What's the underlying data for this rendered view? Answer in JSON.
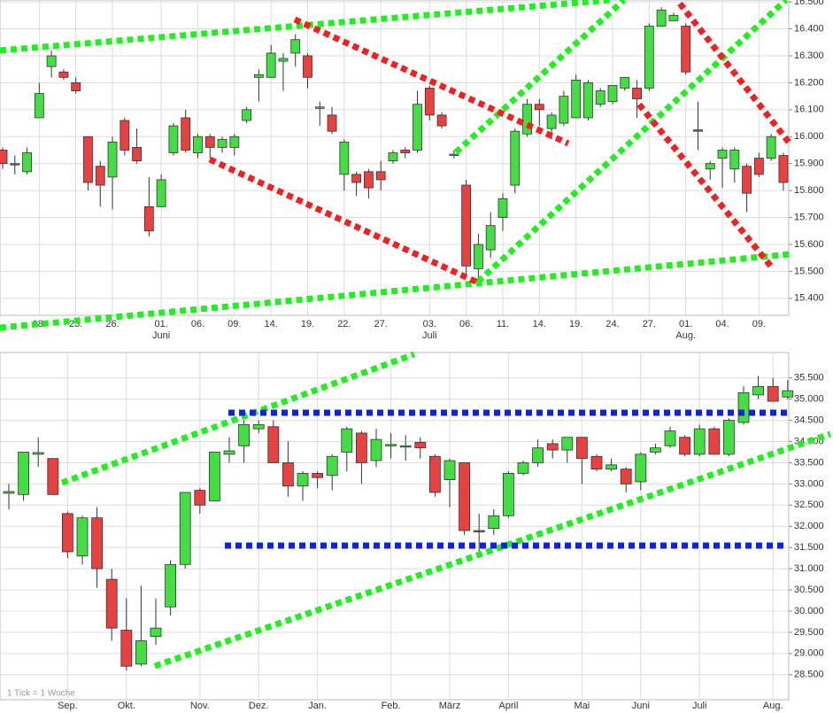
{
  "chart_data": [
    {
      "type": "candlestick",
      "categories": [
        null,
        null,
        null,
        "18.",
        null,
        null,
        "23.",
        null,
        null,
        "26.",
        null,
        null,
        null,
        "01.",
        null,
        null,
        "06.",
        null,
        null,
        "09.",
        null,
        null,
        "14.",
        null,
        null,
        "19.",
        null,
        null,
        "22.",
        null,
        null,
        "27.",
        null,
        null,
        null,
        "03.",
        null,
        null,
        "06.",
        null,
        null,
        "11.",
        null,
        null,
        "14.",
        null,
        null,
        "19.",
        null,
        null,
        "24.",
        null,
        null,
        "27.",
        null,
        null,
        "01.",
        null,
        null,
        "04.",
        null,
        null,
        "09.",
        null,
        null
      ],
      "month_labels": [
        null,
        null,
        null,
        null,
        null,
        null,
        null,
        null,
        null,
        null,
        null,
        null,
        null,
        "Juni",
        null,
        null,
        null,
        null,
        null,
        null,
        null,
        null,
        null,
        null,
        null,
        null,
        null,
        null,
        null,
        null,
        null,
        null,
        null,
        null,
        null,
        "Juli",
        null,
        null,
        null,
        null,
        null,
        null,
        null,
        null,
        null,
        null,
        null,
        null,
        null,
        null,
        null,
        null,
        null,
        null,
        null,
        null,
        "Aug.",
        null,
        null,
        null,
        null,
        null,
        null,
        null,
        null
      ],
      "open": [
        15.95,
        15.9,
        15.87,
        16.07,
        16.26,
        16.24,
        16.2,
        16.0,
        15.89,
        15.85,
        16.06,
        15.96,
        15.74,
        15.74,
        15.94,
        16.07,
        15.94,
        16.0,
        15.96,
        15.96,
        16.06,
        16.22,
        16.22,
        16.28,
        16.31,
        16.3,
        16.105,
        16.08,
        15.86,
        15.86,
        15.87,
        15.87,
        15.91,
        15.95,
        15.95,
        16.18,
        16.08,
        15.93,
        15.82,
        15.51,
        15.58,
        15.7,
        15.82,
        16.01,
        16.12,
        16.03,
        16.05,
        16.07,
        16.07,
        16.12,
        16.13,
        16.18,
        16.18,
        16.18,
        16.41,
        16.43,
        16.41,
        16.025,
        15.88,
        15.92,
        15.88,
        15.89,
        15.92,
        15.92,
        15.93
      ],
      "high": [
        15.96,
        15.93,
        15.96,
        16.2,
        16.32,
        16.25,
        16.22,
        16.0,
        15.91,
        16.0,
        16.07,
        16.03,
        15.85,
        15.86,
        16.05,
        16.1,
        16.01,
        16.01,
        16.0,
        16.01,
        16.11,
        16.25,
        16.34,
        16.31,
        16.38,
        16.31,
        16.13,
        16.11,
        15.99,
        15.87,
        15.88,
        15.91,
        15.95,
        15.96,
        16.17,
        16.19,
        16.09,
        15.95,
        15.84,
        15.64,
        15.72,
        15.79,
        16.03,
        16.14,
        16.14,
        16.09,
        16.17,
        16.23,
        16.21,
        16.18,
        16.19,
        16.22,
        16.21,
        16.42,
        16.48,
        16.46,
        16.42,
        16.13,
        15.91,
        15.96,
        15.96,
        15.9,
        15.94,
        16.01,
        15.94
      ],
      "low": [
        15.88,
        15.86,
        15.86,
        16.07,
        16.22,
        16.21,
        16.16,
        15.8,
        15.74,
        15.73,
        15.93,
        15.9,
        15.63,
        15.74,
        15.93,
        15.94,
        15.92,
        15.92,
        15.94,
        15.93,
        16.05,
        16.13,
        16.22,
        16.17,
        16.26,
        16.18,
        16.04,
        16.01,
        15.8,
        15.78,
        15.77,
        15.8,
        15.9,
        15.92,
        15.94,
        16.06,
        16.03,
        15.92,
        15.48,
        15.47,
        15.55,
        15.65,
        15.79,
        16.0,
        16.04,
        15.99,
        16.04,
        16.07,
        16.06,
        16.11,
        16.12,
        16.17,
        16.07,
        16.17,
        16.41,
        16.43,
        16.23,
        15.95,
        15.84,
        15.81,
        15.83,
        15.72,
        15.85,
        15.91,
        15.8
      ],
      "close": [
        15.9,
        15.895,
        15.94,
        16.16,
        16.3,
        16.22,
        16.17,
        15.83,
        15.82,
        15.98,
        15.95,
        15.91,
        15.65,
        15.84,
        16.04,
        15.95,
        16.0,
        15.96,
        15.99,
        16.0,
        16.1,
        16.23,
        16.31,
        16.29,
        16.36,
        16.22,
        16.11,
        16.02,
        15.98,
        15.83,
        15.81,
        15.84,
        15.94,
        15.94,
        16.12,
        16.08,
        16.04,
        15.935,
        15.52,
        15.6,
        15.67,
        15.77,
        16.02,
        16.12,
        16.1,
        16.08,
        16.15,
        16.21,
        16.2,
        16.17,
        16.19,
        16.22,
        16.14,
        16.41,
        16.47,
        16.45,
        16.24,
        16.02,
        15.9,
        15.95,
        15.95,
        15.79,
        15.86,
        16.0,
        15.83
      ],
      "ylim": [
        15.337,
        16.507
      ],
      "yticks": [
        {
          "value": 15.4,
          "label": "15.400"
        },
        {
          "value": 15.5,
          "label": "15.500"
        },
        {
          "value": 15.6,
          "label": "15.600"
        },
        {
          "value": 15.7,
          "label": "15.700"
        },
        {
          "value": 15.8,
          "label": "15.800"
        },
        {
          "value": 15.9,
          "label": "15.900"
        },
        {
          "value": 16.0,
          "label": "16.000"
        },
        {
          "value": 16.1,
          "label": "16.100"
        },
        {
          "value": 16.2,
          "label": "16.200"
        },
        {
          "value": 16.3,
          "label": "16.300"
        },
        {
          "value": 16.4,
          "label": "16.400"
        },
        {
          "value": 16.5,
          "label": "16.500"
        }
      ],
      "grid": true,
      "up_color": "#44dd44",
      "down_color": "#e84141"
    },
    {
      "type": "candlestick",
      "note": "1 Tick = 1 Woche",
      "categories": [
        null,
        null,
        null,
        null,
        "Sep.",
        null,
        null,
        null,
        "Okt.",
        null,
        null,
        null,
        null,
        "Nov.",
        null,
        null,
        null,
        "Dez.",
        null,
        null,
        null,
        "Jan.",
        null,
        null,
        null,
        null,
        "Feb.",
        null,
        null,
        null,
        "März",
        null,
        null,
        null,
        "April",
        null,
        null,
        null,
        null,
        "Mai",
        null,
        null,
        null,
        "Juni",
        null,
        null,
        null,
        "Juli",
        null,
        null,
        null,
        null,
        "Aug.",
        null
      ],
      "open": [
        32.78,
        32.75,
        33.7,
        33.6,
        32.3,
        31.3,
        32.2,
        30.75,
        29.55,
        28.75,
        29.4,
        30.1,
        31.1,
        32.85,
        32.6,
        33.7,
        33.9,
        34.3,
        34.35,
        33.5,
        32.95,
        33.25,
        33.2,
        33.75,
        34.2,
        33.55,
        33.93,
        33.9,
        33.98,
        33.65,
        33.1,
        33.5,
        31.9,
        31.95,
        32.25,
        33.25,
        33.5,
        33.95,
        33.8,
        34.1,
        33.65,
        33.35,
        33.35,
        33.05,
        33.75,
        33.9,
        34.1,
        33.7,
        34.3,
        33.7,
        34.45,
        35.1,
        35.3,
        35.05
      ],
      "high": [
        33.0,
        33.75,
        34.1,
        33.6,
        32.35,
        32.25,
        32.45,
        31.0,
        30.3,
        30.6,
        30.3,
        31.2,
        32.8,
        32.9,
        33.75,
        34.1,
        34.5,
        34.5,
        34.5,
        34.0,
        33.3,
        33.3,
        33.7,
        34.35,
        34.25,
        34.3,
        34.2,
        34.15,
        34.1,
        33.7,
        33.6,
        33.5,
        32.3,
        32.4,
        33.3,
        33.55,
        34.05,
        34.05,
        34.1,
        34.1,
        33.7,
        33.6,
        33.4,
        33.75,
        33.95,
        34.35,
        34.15,
        34.4,
        34.35,
        34.55,
        35.3,
        35.55,
        35.5,
        35.45
      ],
      "low": [
        32.4,
        32.6,
        33.4,
        32.75,
        31.25,
        31.1,
        30.55,
        29.3,
        28.6,
        28.7,
        29.2,
        29.9,
        31.0,
        32.3,
        32.6,
        33.5,
        33.5,
        34.2,
        33.5,
        32.7,
        32.6,
        32.9,
        32.85,
        33.3,
        33.0,
        33.4,
        33.6,
        33.55,
        33.6,
        32.7,
        32.45,
        31.8,
        31.4,
        31.8,
        32.2,
        33.2,
        33.4,
        33.6,
        33.5,
        33.0,
        33.3,
        33.3,
        32.8,
        32.85,
        33.7,
        33.85,
        33.65,
        33.65,
        33.7,
        33.65,
        34.4,
        35.0,
        34.95,
        35.0
      ],
      "close": [
        32.82,
        33.75,
        33.74,
        32.75,
        31.4,
        32.2,
        31.0,
        29.6,
        28.7,
        29.3,
        29.6,
        31.1,
        32.8,
        32.5,
        33.75,
        33.78,
        34.4,
        34.4,
        33.5,
        32.95,
        33.25,
        33.15,
        33.65,
        34.3,
        33.5,
        34.05,
        33.93,
        33.9,
        33.85,
        32.8,
        33.55,
        31.9,
        31.88,
        32.25,
        33.25,
        33.5,
        33.85,
        33.8,
        34.1,
        33.6,
        33.35,
        33.45,
        33.0,
        33.7,
        33.85,
        34.25,
        33.7,
        34.3,
        33.7,
        34.5,
        35.15,
        35.3,
        34.95,
        35.2
      ],
      "ylim": [
        27.91,
        36.1
      ],
      "yticks": [
        {
          "value": 28.5,
          "label": "28.500"
        },
        {
          "value": 29,
          "label": "29.000"
        },
        {
          "value": 29.5,
          "label": "29.500"
        },
        {
          "value": 30,
          "label": "30.000"
        },
        {
          "value": 30.5,
          "label": "30.500"
        },
        {
          "value": 31,
          "label": "31.000"
        },
        {
          "value": 31.5,
          "label": "31.500"
        },
        {
          "value": 32,
          "label": "32.000"
        },
        {
          "value": 32.5,
          "label": "32.500"
        },
        {
          "value": 33,
          "label": "33.000"
        },
        {
          "value": 33.5,
          "label": "33.500"
        },
        {
          "value": 34,
          "label": "34.000"
        },
        {
          "value": 34.5,
          "label": "34.500"
        },
        {
          "value": 35,
          "label": "35.000"
        },
        {
          "value": 35.5,
          "label": "35.500"
        }
      ],
      "grid": true,
      "up_color": "#44dd44",
      "down_color": "#e84141"
    }
  ]
}
